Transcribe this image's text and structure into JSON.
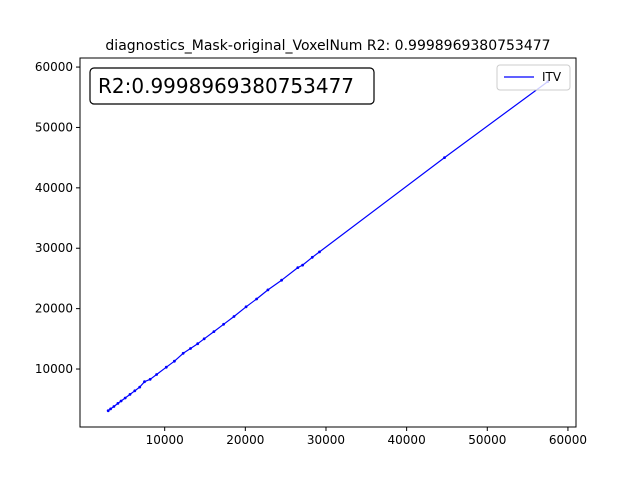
{
  "chart_data": {
    "type": "line",
    "title": "diagnostics_Mask-original_VoxelNum R2: 0.9998969380753477",
    "xlabel": "",
    "ylabel": "",
    "xlim": [
      3000,
      57500
    ],
    "ylim": [
      3100,
      57600
    ],
    "xlim_axis": [
      -500,
      61000
    ],
    "ylim_axis": [
      400,
      61500
    ],
    "xticks": [
      10000,
      20000,
      30000,
      40000,
      50000,
      60000
    ],
    "yticks": [
      10000,
      20000,
      30000,
      40000,
      50000,
      60000
    ],
    "tick_labels_x": [
      "10000",
      "20000",
      "30000",
      "40000",
      "50000",
      "60000"
    ],
    "tick_labels_y": [
      "10000",
      "20000",
      "30000",
      "40000",
      "50000",
      "60000"
    ],
    "grid": false,
    "legend": {
      "placement": "top-right",
      "entries": [
        "ITV"
      ]
    },
    "annotation": "R2:0.9998969380753477",
    "series": [
      {
        "name": "ITV",
        "color": "#0000ff",
        "points": [
          [
            3000,
            3100
          ],
          [
            3300,
            3400
          ],
          [
            3700,
            3800
          ],
          [
            4200,
            4300
          ],
          [
            4600,
            4700
          ],
          [
            5100,
            5200
          ],
          [
            5700,
            5800
          ],
          [
            6300,
            6400
          ],
          [
            6900,
            7000
          ],
          [
            7500,
            7900
          ],
          [
            8200,
            8300
          ],
          [
            9000,
            9100
          ],
          [
            10200,
            10300
          ],
          [
            11200,
            11300
          ],
          [
            12300,
            12600
          ],
          [
            13200,
            13400
          ],
          [
            14100,
            14200
          ],
          [
            14900,
            15000
          ],
          [
            16100,
            16200
          ],
          [
            17300,
            17400
          ],
          [
            18600,
            18700
          ],
          [
            20100,
            20300
          ],
          [
            21400,
            21600
          ],
          [
            22800,
            23100
          ],
          [
            24500,
            24700
          ],
          [
            26500,
            26800
          ],
          [
            27100,
            27200
          ],
          [
            28300,
            28500
          ],
          [
            29200,
            29400
          ],
          [
            44700,
            45000
          ],
          [
            57500,
            57600
          ]
        ]
      }
    ]
  }
}
